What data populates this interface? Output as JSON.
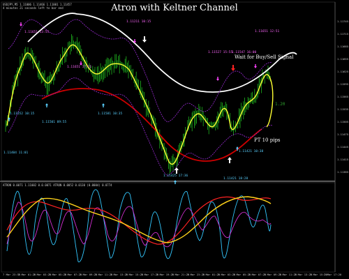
{
  "window": {
    "title": "Atron with Keltner Channel",
    "symbol_line": "USDJPY,M5 1.11006 1.11466 1.11001 1.11457",
    "timer_line": "4 minutes 21 seconds left to bar end",
    "indicator_line": "ATRON 0.0071 1.11002 0.0.0071 ATRON 0.0052 0.0130 (0.0004) 0.0774"
  },
  "annotations": {
    "wait_signal": "Wait for Buy/Sell Signal",
    "profit_target": "PT 10 pips",
    "price_tag": "1.20"
  },
  "level_labels": [
    "1.11651 13:55",
    "1.11211 10:15",
    "1.11651 12:51",
    "1.11527 15:55",
    "1.11547 16:00",
    "1.11651 17:21",
    "1.11552 10:15",
    "1.11501 09:55",
    "1.11581 10:35",
    "1.11404 11:01",
    "1.11421 10:38",
    "1.11425 17:36",
    "1.11421 18:28"
  ],
  "price_axis": [
    "1.11745",
    "1.11715",
    "1.11685",
    "1.11655",
    "1.11625",
    "1.11595",
    "1.11565",
    "1.11535",
    "1.11505",
    "1.11475",
    "1.11445",
    "1.11415",
    "1.11385"
  ],
  "time_axis": [
    "7 Mar 23:55",
    "7 Mar 01:20",
    "7 Mar 03:20",
    "7 Mar 05:20",
    "7 Mar 07:20",
    "7 Mar 09:20",
    "7 Mar 11:20",
    "7 Mar 13:20",
    "7 Mar 15:20",
    "7 Mar 17:20",
    "7 Mar 19:20",
    "7 Mar 21:20",
    "7 Mar 23:20",
    "7 Mar 01:20",
    "7 Mar 03:20",
    "7 Mar 05:20",
    "7 Mar 07:20",
    "7 Mar 09:20",
    "7 Mar 11:20",
    "7 Mar 13:20",
    "7 Mar 15:20",
    "7 Mar 17:20"
  ],
  "colors": {
    "candles": "#1fb41f",
    "price_line": "#ffff33",
    "keltner_upper": "#ffffff",
    "keltner_lower": "#cc0000",
    "envelope": "#9b2bd6",
    "buy_arrow": "#5ad0ff",
    "sell_arrow": "#ff44ff",
    "osc_cyan": "#33c8ff",
    "osc_magenta": "#d02fd0",
    "osc_red": "#ff2222",
    "osc_yellow": "#ffd21a"
  }
}
